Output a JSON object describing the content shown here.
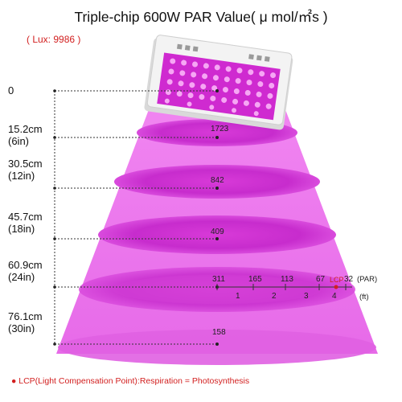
{
  "title": "Triple-chip 600W PAR Value( μ mol/㎡s )",
  "lux": "( Lux: 9986 )",
  "distances": [
    {
      "metric": "0",
      "imperial": ""
    },
    {
      "metric": "15.2cm",
      "imperial": "(6in)"
    },
    {
      "metric": "30.5cm",
      "imperial": "(12in)"
    },
    {
      "metric": "45.7cm",
      "imperial": "(18in)"
    },
    {
      "metric": "60.9cm",
      "imperial": "(24in)"
    },
    {
      "metric": "76.1cm",
      "imperial": "(30in)"
    }
  ],
  "par_values": [
    "1723",
    "842",
    "409",
    "311",
    "158"
  ],
  "horizontal_scale": {
    "par_values": [
      "311",
      "165",
      "113",
      "67",
      "32"
    ],
    "par_unit": "(PAR)",
    "ft_marks": [
      "1",
      "2",
      "3",
      "4"
    ],
    "ft_unit": "(ft)",
    "lcp_label": "LCP"
  },
  "footnote": "● LCP(Light Compensation Point):Respiration = Photosynthesis",
  "colors": {
    "light": "#e84ee8",
    "light_dark": "#c02ec8",
    "lcp_red": "#d21f1f",
    "housing": "#f2f2f2"
  }
}
